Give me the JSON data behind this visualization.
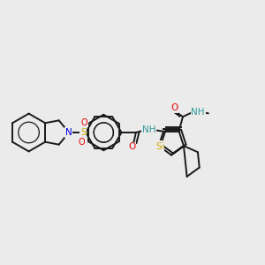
{
  "bg_color": "#ebebeb",
  "fig_width": 3.0,
  "fig_height": 3.0,
  "dpi": 100,
  "bond_color": "#1a1a1a",
  "colors": {
    "N": "#0000ee",
    "O": "#ee0000",
    "S": "#ccaa00",
    "NH": "#339999",
    "C": "#1a1a1a"
  }
}
